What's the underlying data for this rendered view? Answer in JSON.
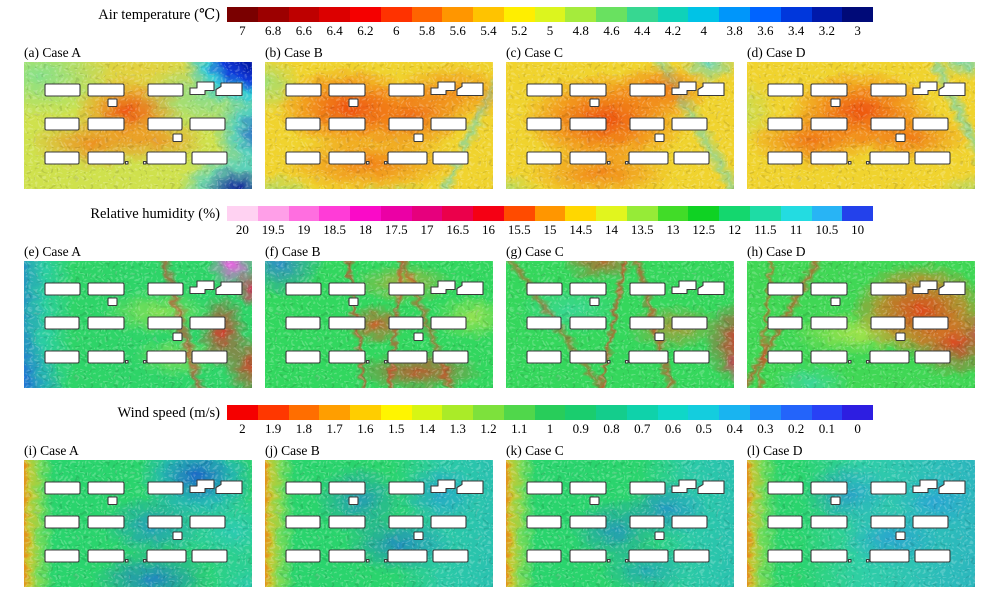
{
  "figure": {
    "rows": [
      {
        "section": "air_temperature",
        "colorbar": {
          "title": "Air temperature (℃)",
          "ticks": [
            "7",
            "6.8",
            "6.6",
            "6.4",
            "6.2",
            "6",
            "5.8",
            "5.6",
            "5.4",
            "5.2",
            "5",
            "4.8",
            "4.6",
            "4.4",
            "4.2",
            "4",
            "3.8",
            "3.6",
            "3.4",
            "3.2",
            "3"
          ],
          "colors": [
            "#7a0000",
            "#9c0000",
            "#be0000",
            "#dc0000",
            "#f50000",
            "#ff3200",
            "#ff6400",
            "#ff9600",
            "#ffc300",
            "#ffee00",
            "#dcf51e",
            "#a5eb3c",
            "#69e160",
            "#37d791",
            "#0fd2b9",
            "#00c3e6",
            "#0096fa",
            "#0064ff",
            "#0037dc",
            "#0019aa",
            "#000a78"
          ]
        },
        "panels": [
          {
            "label": "(a) Case A"
          },
          {
            "label": "(b) Case B"
          },
          {
            "label": "(c) Case C"
          },
          {
            "label": "(d) Case D"
          }
        ]
      },
      {
        "section": "relative_humidity",
        "colorbar": {
          "title": "Relative humidity (%)",
          "ticks": [
            "20",
            "19.5",
            "19",
            "18.5",
            "18",
            "17.5",
            "17",
            "16.5",
            "16",
            "15.5",
            "15",
            "14.5",
            "14",
            "13.5",
            "13",
            "12.5",
            "12",
            "11.5",
            "11",
            "10.5",
            "10"
          ],
          "colors": [
            "#ffd2f2",
            "#ff9fe8",
            "#ff6ee0",
            "#ff3cd7",
            "#fa0ac8",
            "#eb00a5",
            "#e6007d",
            "#eb004b",
            "#f50014",
            "#ff4b00",
            "#ff9600",
            "#ffd700",
            "#e1f51e",
            "#96eb37",
            "#41dc28",
            "#0fd223",
            "#14d76e",
            "#1edca5",
            "#23dce1",
            "#28b4f5",
            "#2341eb"
          ]
        },
        "panels": [
          {
            "label": "(e) Case A"
          },
          {
            "label": "(f) Case B"
          },
          {
            "label": "(g) Case C"
          },
          {
            "label": "(h) Case D"
          }
        ]
      },
      {
        "section": "wind_speed",
        "colorbar": {
          "title": "Wind speed (m/s)",
          "ticks": [
            "2",
            "1.9",
            "1.8",
            "1.7",
            "1.6",
            "1.5",
            "1.4",
            "1.3",
            "1.2",
            "1.1",
            "1",
            "0.9",
            "0.8",
            "0.7",
            "0.6",
            "0.5",
            "0.4",
            "0.3",
            "0.2",
            "0.1",
            "0"
          ],
          "colors": [
            "#f50000",
            "#ff3700",
            "#ff6e00",
            "#ff9e00",
            "#ffcd00",
            "#fff500",
            "#d7f514",
            "#aaeb28",
            "#7de13c",
            "#50d74b",
            "#28cd5a",
            "#1acd6e",
            "#14cd8c",
            "#0fd2aa",
            "#0fd7c8",
            "#14cdde",
            "#19b4f0",
            "#1e8cfa",
            "#2364fa",
            "#2841f5",
            "#2d1ee1"
          ]
        },
        "panels": [
          {
            "label": "(i) Case A"
          },
          {
            "label": "(j) Case B"
          },
          {
            "label": "(k) Case C"
          },
          {
            "label": "(l) Case D"
          }
        ]
      }
    ]
  },
  "chart_data": [
    {
      "type": "heatmap",
      "title": "Air temperature (℃)",
      "panels": [
        "(a) Case A",
        "(b) Case B",
        "(c) Case C",
        "(d) Case D"
      ],
      "colorbar_ticks": [
        7,
        6.8,
        6.6,
        6.4,
        6.2,
        6,
        5.8,
        5.6,
        5.4,
        5.2,
        5,
        4.8,
        4.6,
        4.4,
        4.2,
        4,
        3.8,
        3.6,
        3.4,
        3.2,
        3
      ],
      "value_range": [
        3,
        7
      ],
      "tick_step": 0.2,
      "colorbar_order": "maximum (dark red) at left, minimum (navy blue) at right",
      "legend_position": "top",
      "panel_fields": {
        "(a) Case A": "yellow-green background (~5 ℃), orange warm pockets (~5.8–6.2 ℃) between central buildings, cold cyan-to-navy plumes (~3–4 ℃) along the right edge",
        "(b) Case B": "yellow-orange background (~5.4 ℃) with strong red-orange warm zones (~6 ℃) around the building rows, small green-cyan streaks at edges",
        "(c) Case C": "yellow-orange background with large red-orange warm core in the array, cyan cool streaks near the top-right corner",
        "(d) Case D": "yellow-orange background with red-orange warm pockets through the array, cyan streaks at top-right"
      }
    },
    {
      "type": "heatmap",
      "title": "Relative humidity (%)",
      "panels": [
        "(e) Case A",
        "(f) Case B",
        "(g) Case C",
        "(h) Case D"
      ],
      "colorbar_ticks": [
        20,
        19.5,
        19,
        18.5,
        18,
        17.5,
        17,
        16.5,
        16,
        15.5,
        15,
        14.5,
        14,
        13.5,
        13,
        12.5,
        12,
        11.5,
        11,
        10.5,
        10
      ],
      "value_range": [
        10,
        20
      ],
      "tick_step": 0.5,
      "colorbar_order": "maximum (pale pink) at left, minimum (blue) at right",
      "legend_position": "top",
      "panel_fields": {
        "(e) Case A": "green background (~13 %), humid blue-cyan zone (~10–11 %) along the left edge, high-humidity red streaks (~16–17 %) and a magenta spot (~18–19 %) near the right edge",
        "(f) Case B": "green background with blue patch at top-left, thin red high-humidity streaks trailing from buildings toward the right",
        "(g) Case C": "green-teal background, red streaks through the array and a strong red/magenta zone at the right edge",
        "(h) Case D": "green background with large red-orange high-humidity region right of centre and magenta at the far right edge"
      }
    },
    {
      "type": "heatmap",
      "title": "Wind speed (m/s)",
      "panels": [
        "(i) Case A",
        "(j) Case B",
        "(k) Case C",
        "(l) Case D"
      ],
      "colorbar_ticks": [
        2,
        1.9,
        1.8,
        1.7,
        1.6,
        1.5,
        1.4,
        1.3,
        1.2,
        1.1,
        1,
        0.9,
        0.8,
        0.7,
        0.6,
        0.5,
        0.4,
        0.3,
        0.2,
        0.1,
        0
      ],
      "value_range": [
        0,
        2
      ],
      "tick_step": 0.1,
      "colorbar_order": "maximum (red) at left, minimum (blue) at right",
      "legend_position": "top",
      "panel_fields": {
        "(i) Case A": "red-orange high-speed inflow (~1.8–2 m/s) along the left edge decaying to green (~1 m/s); blue low-speed wakes (~0.2–0.4 m/s) behind buildings and at top-right",
        "(j) Case B": "red-orange inflow at left, green field with blue wake patches in the street canyons, cyan (~0.5 m/s) over the right half",
        "(k) Case C": "red-orange inflow at left, blue wake patches mid-array, cyan-blue downwind region",
        "(l) Case D": "red-orange inflow at left, field turning cyan-blue (~0.3–0.6 m/s) across the array with blue wakes behind buildings"
      }
    }
  ],
  "layout_notes": {
    "buildings": "Each panel shows the same plan view: 3 rows of 4 slab buildings, two small square kiosks, two notched buildings at top right, and two tiny posts near the bottom row; buildings drawn white with dark outlines."
  }
}
